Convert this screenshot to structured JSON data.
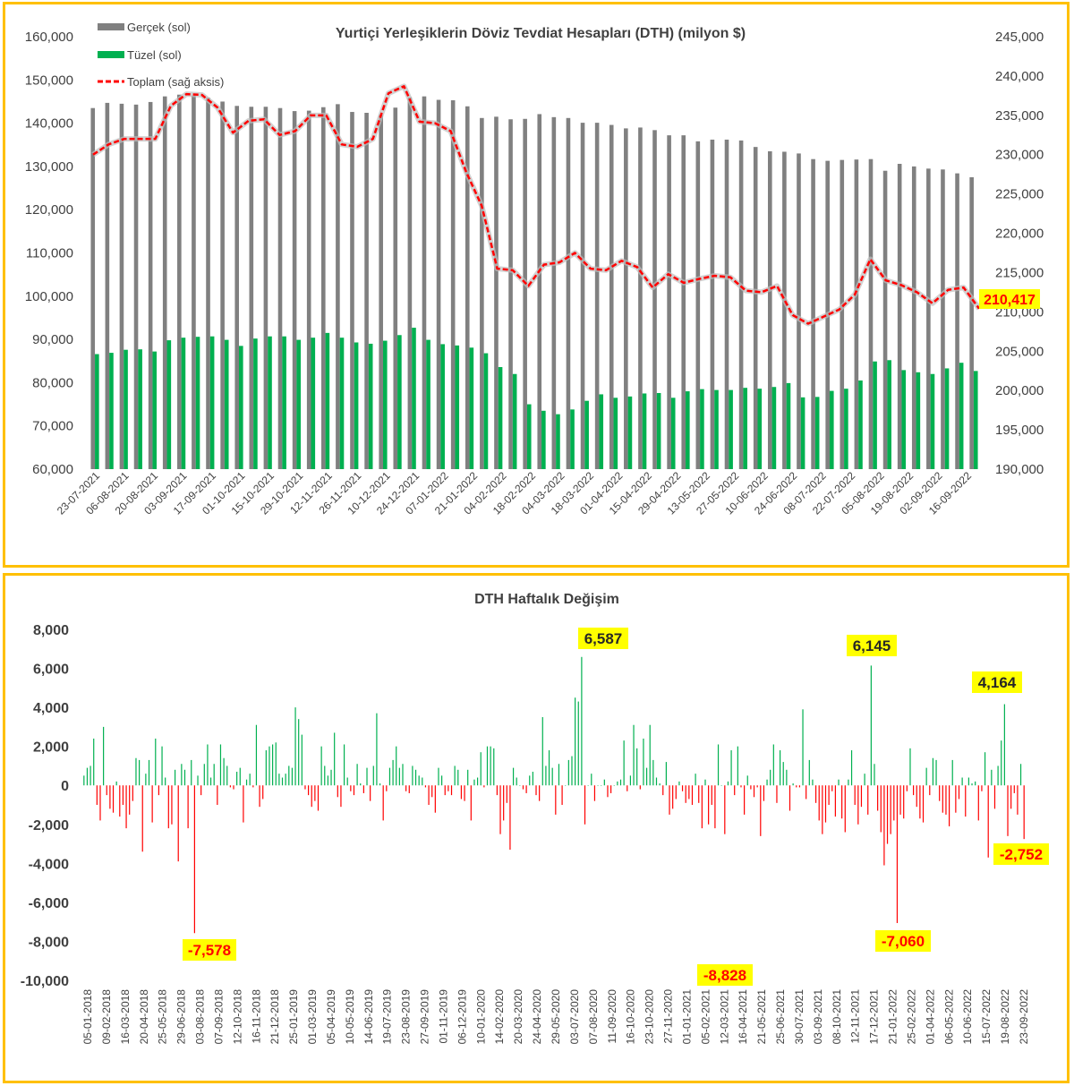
{
  "chart_data": [
    {
      "type": "bar+line",
      "title": "Yurtiçi Yerleşiklerin Döviz Tevdiat Hesapları (DTH) (milyon $)",
      "legend": [
        "Gerçek (sol)",
        "Tüzel (sol)",
        "Toplam (sağ aksis)"
      ],
      "legend_position": "top-left",
      "colors": {
        "gercek": "#808080",
        "tuzel": "#00b050",
        "toplam": "#ff0000",
        "highlight": "#ffff00",
        "border": "#ffc000"
      },
      "left_axis": {
        "ylim": [
          60000,
          160000
        ],
        "ticks": [
          "60,000",
          "70,000",
          "80,000",
          "90,000",
          "100,000",
          "110,000",
          "120,000",
          "130,000",
          "140,000",
          "150,000",
          "160,000"
        ]
      },
      "right_axis": {
        "ylim": [
          190000,
          245000
        ],
        "ticks": [
          "190,000",
          "195,000",
          "200,000",
          "205,000",
          "210,000",
          "215,000",
          "220,000",
          "225,000",
          "230,000",
          "235,000",
          "240,000",
          "245,000"
        ]
      },
      "x_tick_labels": [
        "23-07-2021",
        "06-08-2021",
        "20-08-2021",
        "03-09-2021",
        "17-09-2021",
        "01-10-2021",
        "15-10-2021",
        "29-10-2021",
        "12-11-2021",
        "26-11-2021",
        "10-12-2021",
        "24-12-2021",
        "07-01-2022",
        "21-01-2022",
        "04-02-2022",
        "18-02-2022",
        "04-03-2022",
        "18-03-2022",
        "01-04-2022",
        "15-04-2022",
        "29-04-2022",
        "13-05-2022",
        "27-05-2022",
        "10-06-2022",
        "24-06-2022",
        "08-07-2022",
        "22-07-2022",
        "05-08-2022",
        "19-08-2022",
        "02-09-2022",
        "16-09-2022"
      ],
      "series": [
        {
          "name": "Gerçek (sol)",
          "values": [
            143500,
            144700,
            144500,
            144300,
            144900,
            146200,
            146600,
            146400,
            145900,
            145000,
            144000,
            143800,
            143800,
            143500,
            142800,
            142900,
            143700,
            144400,
            142600,
            142400,
            141900,
            143600,
            146000,
            146200,
            145400,
            145300,
            143900,
            141200,
            141500,
            140900,
            141000,
            142100,
            141400,
            141200,
            140100,
            140100,
            139600,
            138800,
            139000,
            138400,
            137200,
            137200,
            135800,
            136200,
            136200,
            136000,
            134500,
            133500,
            133400,
            133000,
            131700,
            131300,
            131500,
            131600,
            131700,
            129000,
            130600,
            130000,
            129500,
            129300,
            128400,
            127500
          ]
        },
        {
          "name": "Tüzel (sol)",
          "values": [
            86600,
            86900,
            87600,
            87700,
            87200,
            89800,
            90400,
            90600,
            90700,
            89900,
            88500,
            90200,
            90700,
            90700,
            89900,
            90400,
            91500,
            90400,
            89300,
            89000,
            89700,
            91000,
            92700,
            89900,
            88900,
            88600,
            88100,
            86800,
            83600,
            82000,
            75000,
            73500,
            72700,
            73800,
            75800,
            77300,
            76500,
            76800,
            77500,
            77600,
            76500,
            78000,
            78500,
            78300,
            78300,
            78800,
            78600,
            79000,
            79900,
            76600,
            76700,
            78100,
            78600,
            80500,
            84900,
            85200,
            82900,
            82400,
            82000,
            83300,
            84600,
            82700
          ]
        },
        {
          "name": "Toplam (sağ aksis)",
          "values": [
            230000,
            231300,
            232000,
            232000,
            232000,
            236200,
            237700,
            237600,
            236000,
            232800,
            234300,
            234500,
            232500,
            233000,
            235000,
            235000,
            231300,
            231000,
            232000,
            237800,
            238700,
            234200,
            234000,
            233000,
            227800,
            223500,
            215500,
            215300,
            213300,
            216000,
            216300,
            217500,
            215500,
            215300,
            216500,
            215700,
            213100,
            214800,
            213700,
            214200,
            214600,
            214400,
            212700,
            212500,
            213300,
            209600,
            208500,
            209400,
            210300,
            212200,
            216700,
            214000,
            213400,
            212500,
            211100,
            212800,
            213100,
            210417
          ]
        }
      ],
      "end_label": "210,417"
    },
    {
      "type": "bar",
      "title": "DTH Haftalık Değişim",
      "ylim": [
        -10000,
        8000
      ],
      "y_ticks": [
        "-10,000",
        "-8,000",
        "-6,000",
        "-4,000",
        "-2,000",
        "0",
        "2,000",
        "4,000",
        "6,000",
        "8,000"
      ],
      "colors": {
        "positive": "#00b050",
        "negative": "#ff0000"
      },
      "x_tick_labels": [
        "05-01-2018",
        "09-02-2018",
        "16-03-2018",
        "20-04-2018",
        "25-05-2018",
        "29-06-2018",
        "03-08-2018",
        "07-09-2018",
        "12-10-2018",
        "16-11-2018",
        "21-12-2018",
        "25-01-2019",
        "01-03-2019",
        "05-04-2019",
        "10-05-2019",
        "14-06-2019",
        "19-07-2019",
        "23-08-2019",
        "27-09-2019",
        "01-11-2019",
        "06-12-2019",
        "10-01-2020",
        "14-02-2020",
        "20-03-2020",
        "24-04-2020",
        "29-05-2020",
        "03-07-2020",
        "07-08-2020",
        "11-09-2020",
        "16-10-2020",
        "23-10-2020",
        "27-11-2020",
        "01-01-2021",
        "05-02-2021",
        "12-03-2021",
        "16-04-2021",
        "21-05-2021",
        "25-06-2021",
        "30-07-2021",
        "03-09-2021",
        "08-10-2021",
        "12-11-2021",
        "17-12-2021",
        "21-01-2022",
        "25-02-2022",
        "01-04-2022",
        "06-05-2022",
        "10-06-2022",
        "15-07-2022",
        "19-08-2022",
        "23-09-2022"
      ],
      "values": [
        500,
        900,
        1000,
        2400,
        -1000,
        -1800,
        3000,
        -500,
        -1200,
        -1400,
        200,
        -1600,
        -1000,
        -2200,
        -1500,
        -800,
        1400,
        1300,
        -3400,
        600,
        1300,
        -1900,
        2400,
        -500,
        2000,
        400,
        -2200,
        -2000,
        800,
        -3900,
        1100,
        800,
        -2200,
        1300,
        -7578,
        500,
        -500,
        1100,
        2100,
        400,
        1100,
        -1000,
        2100,
        1400,
        1000,
        -100,
        -200,
        700,
        900,
        -1900,
        300,
        600,
        -100,
        3100,
        -1100,
        -700,
        1800,
        2000,
        2100,
        2200,
        600,
        400,
        600,
        1000,
        900,
        4000,
        3400,
        2600,
        -200,
        -500,
        -1100,
        -800,
        -1300,
        2000,
        1000,
        500,
        800,
        2700,
        -600,
        -1100,
        2100,
        400,
        -300,
        -500,
        1100,
        100,
        -400,
        900,
        -800,
        1000,
        3700,
        100,
        -1800,
        -300,
        900,
        1300,
        2000,
        900,
        1100,
        -300,
        -400,
        1000,
        800,
        500,
        400,
        -100,
        -1000,
        -600,
        -1400,
        900,
        500,
        -500,
        -300,
        -500,
        1000,
        800,
        -700,
        -800,
        800,
        -1800,
        300,
        400,
        1700,
        -100,
        2000,
        2000,
        1900,
        -500,
        -2500,
        -1800,
        -900,
        -3300,
        900,
        400,
        0,
        -200,
        -400,
        500,
        700,
        -500,
        -800,
        3500,
        1000,
        1800,
        900,
        -1500,
        1100,
        -1000,
        0,
        1300,
        1500,
        4500,
        4300,
        6587,
        -2000,
        0,
        600,
        -800,
        0,
        0,
        300,
        -600,
        -400,
        0,
        200,
        300,
        2300,
        -300,
        500,
        3100,
        1900,
        -200,
        2400,
        900,
        3100,
        1300,
        400,
        100,
        -500,
        1200,
        -1500,
        -1200,
        -700,
        200,
        -300,
        -900,
        -700,
        -1000,
        600,
        -900,
        -2200,
        300,
        -2000,
        -1000,
        -2200,
        2100,
        0,
        -2500,
        200,
        1800,
        -500,
        2000,
        -100,
        -1500,
        500,
        -200,
        -600,
        -100,
        -2600,
        -800,
        300,
        800,
        2100,
        -900,
        1800,
        1200,
        800,
        -1300,
        100,
        -100,
        -100,
        3900,
        -700,
        1300,
        300,
        -900,
        -1800,
        -2500,
        -1900,
        -1000,
        -300,
        -1600,
        300,
        -1700,
        -2400,
        300,
        1800,
        -1000,
        -2000,
        -1100,
        600,
        -1500,
        6145,
        1100,
        -1300,
        -2400,
        -4100,
        -3000,
        -2500,
        -1800,
        -7060,
        -1500,
        -1700,
        -300,
        1900,
        -500,
        -1100,
        -1700,
        -1900,
        900,
        -500,
        1400,
        1300,
        -800,
        -1400,
        -1500,
        -2100,
        1300,
        -1400,
        -700,
        400,
        -1600,
        400,
        100,
        200,
        -1800,
        -300,
        1700,
        -3700,
        800,
        -1200,
        1000,
        2300,
        4164,
        -2600,
        -1200,
        -400,
        -1500,
        1100,
        -2752
      ],
      "annotations": [
        "6,587",
        "6,145",
        "4,164",
        "-7,578",
        "-8,828",
        "-7,060",
        "-2,752"
      ]
    }
  ]
}
